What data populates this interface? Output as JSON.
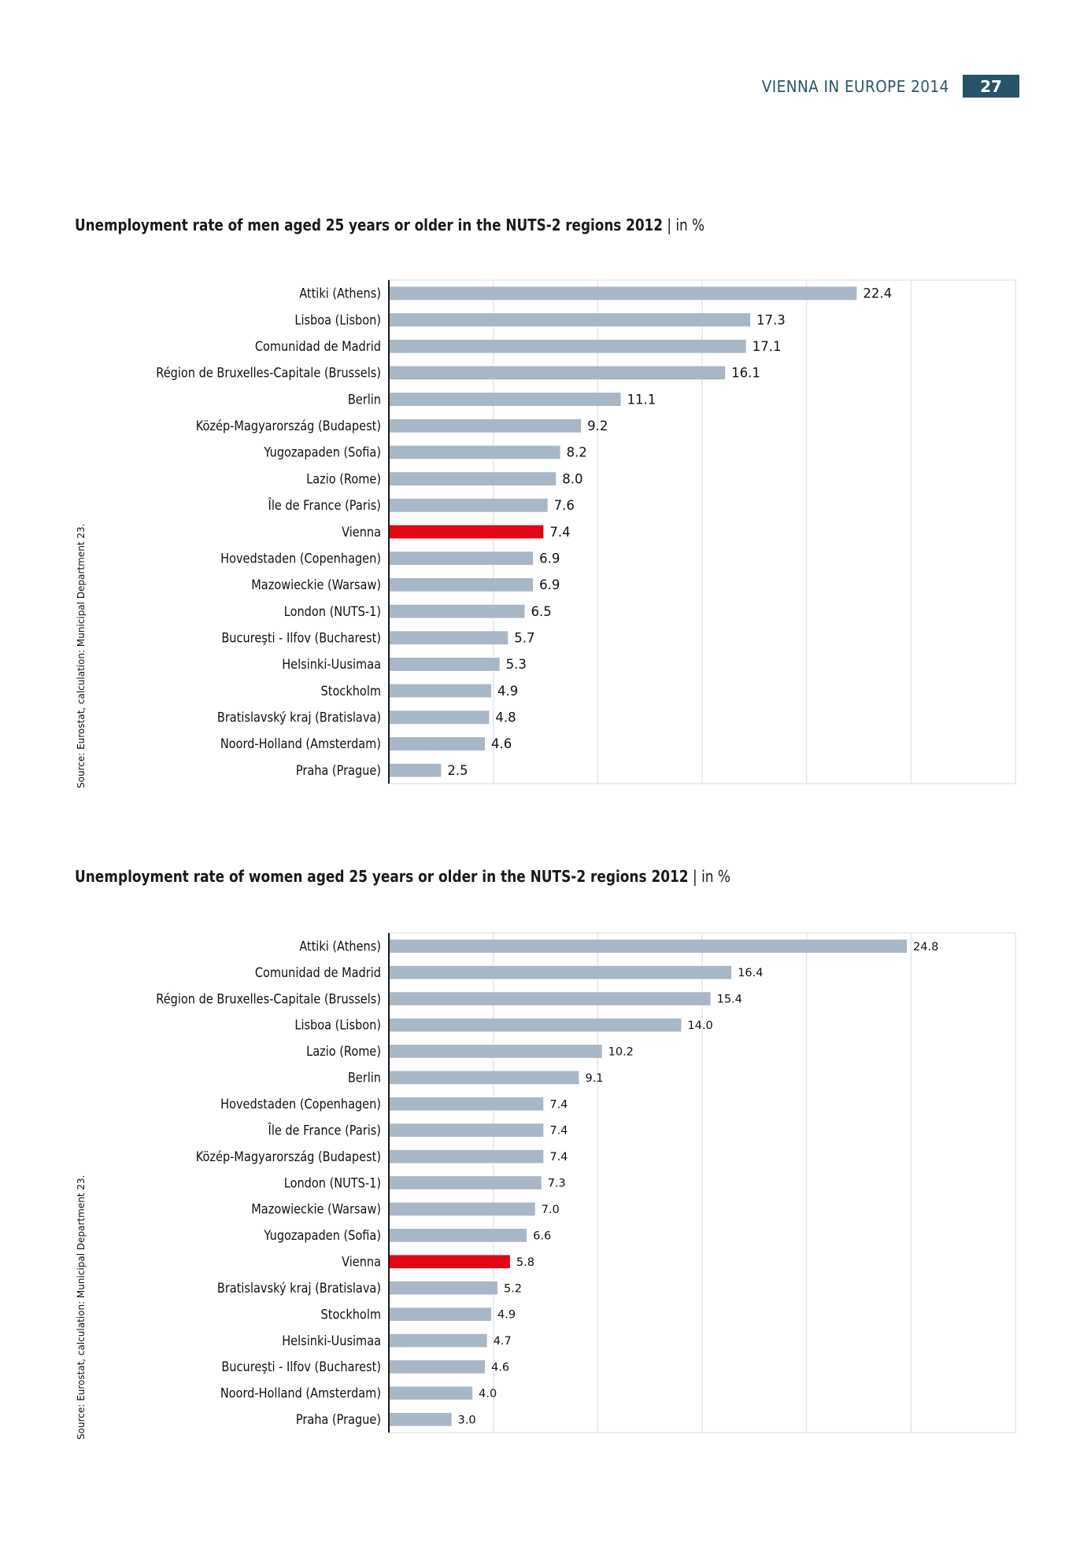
{
  "header": {
    "running_title": "VIENNA IN EUROPE 2014",
    "page_number": "27"
  },
  "colors": {
    "bar": "#a8b7c6",
    "highlight": "#e30613",
    "header_box": "#275366",
    "header_text": "#2c5566",
    "grid": "#e6e6e6",
    "axis": "#1a1a1a"
  },
  "chart_data": [
    {
      "type": "bar",
      "orientation": "horizontal",
      "title": "Unemployment rate of men aged 25 years or older in the NUTS-2 regions 2012",
      "title_unit": "in %",
      "source": "Source: Eurostat, calculation: Municipal Department 23.",
      "xlabel": "",
      "ylabel": "",
      "xlim": [
        0,
        30
      ],
      "grid": true,
      "grid_step": 5,
      "highlight_category": "Vienna",
      "categories": [
        "Attiki (Athens)",
        "Lisboa (Lisbon)",
        "Comunidad de Madrid",
        "Région de Bruxelles-Capitale (Brussels)",
        "Berlin",
        "Közép-Magyarország (Budapest)",
        "Yugozapaden (Sofia)",
        "Lazio (Rome)",
        "Île de France (Paris)",
        "Vienna",
        "Hovedstaden (Copenhagen)",
        "Mazowieckie (Warsaw)",
        "London (NUTS-1)",
        "Bucureşti - Ilfov (Bucharest)",
        "Helsinki-Uusimaa",
        "Stockholm",
        "Bratislavský kraj (Bratislava)",
        "Noord-Holland (Amsterdam)",
        "Praha (Prague)"
      ],
      "values": [
        22.4,
        17.3,
        17.1,
        16.1,
        11.1,
        9.2,
        8.2,
        8.0,
        7.6,
        7.4,
        6.9,
        6.9,
        6.5,
        5.7,
        5.3,
        4.9,
        4.8,
        4.6,
        2.5
      ],
      "value_labels": [
        "22.4",
        "17.3",
        "17.1",
        "16.1",
        "11.1",
        "9.2",
        "8.2",
        "8.0",
        "7.6",
        "7.4",
        "6.9",
        "6.9",
        "6.5",
        "5.7",
        "5.3",
        "4.9",
        "4.8",
        "4.6",
        "2.5"
      ]
    },
    {
      "type": "bar",
      "orientation": "horizontal",
      "title": "Unemployment rate of women aged 25 years or older in the NUTS-2 regions 2012",
      "title_unit": "in %",
      "source": "Source: Eurostat, calculation: Municipal Department 23.",
      "xlabel": "",
      "ylabel": "",
      "xlim": [
        0,
        30
      ],
      "grid": true,
      "grid_step": 5,
      "highlight_category": "Vienna",
      "categories": [
        "Attiki (Athens)",
        "Comunidad de Madrid",
        "Région de Bruxelles-Capitale (Brussels)",
        "Lisboa (Lisbon)",
        "Lazio (Rome)",
        "Berlin",
        "Hovedstaden (Copenhagen)",
        "Île de France (Paris)",
        "Közép-Magyarország (Budapest)",
        "London (NUTS-1)",
        "Mazowieckie (Warsaw)",
        "Yugozapaden (Sofia)",
        "Vienna",
        "Bratislavský kraj (Bratislava)",
        "Stockholm",
        "Helsinki-Uusimaa",
        "Bucureşti - Ilfov (Bucharest)",
        "Noord-Holland (Amsterdam)",
        "Praha (Prague)"
      ],
      "values": [
        24.8,
        16.4,
        15.4,
        14.0,
        10.2,
        9.1,
        7.4,
        7.4,
        7.4,
        7.3,
        7.0,
        6.6,
        5.8,
        5.2,
        4.9,
        4.7,
        4.6,
        4.0,
        3.0
      ],
      "value_labels": [
        "24.8",
        "16.4",
        "15.4",
        "14.0",
        "10.2",
        "9.1",
        "7.4",
        "7.4",
        "7.4",
        "7.3",
        "7.0",
        "6.6",
        "5.8",
        "5.2",
        "4.9",
        "4.7",
        "4.6",
        "4.0",
        "3.0"
      ]
    }
  ]
}
